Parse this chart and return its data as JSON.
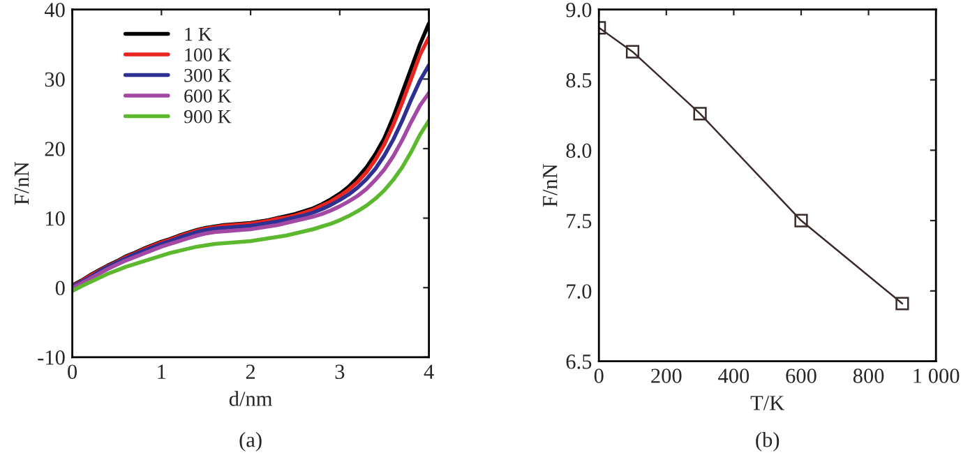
{
  "chart_data": [
    {
      "type": "line",
      "xlabel": "d/nm",
      "ylabel": "F/nN",
      "annotations": [
        "(a)"
      ],
      "xlim": [
        0,
        4
      ],
      "ylim": [
        -10,
        40
      ],
      "xticks": [
        0,
        1,
        2,
        3,
        4
      ],
      "yticks": [
        -10,
        0,
        10,
        20,
        30,
        40
      ],
      "legend": "top left",
      "grid": false,
      "x": [
        0,
        0.1,
        0.2,
        0.3,
        0.4,
        0.5,
        0.6,
        0.7,
        0.8,
        0.9,
        1.0,
        1.1,
        1.2,
        1.3,
        1.4,
        1.5,
        1.6,
        1.7,
        1.8,
        1.9,
        2.0,
        2.1,
        2.2,
        2.3,
        2.4,
        2.5,
        2.6,
        2.7,
        2.8,
        2.9,
        3.0,
        3.1,
        3.2,
        3.3,
        3.4,
        3.5,
        3.6,
        3.7,
        3.8,
        3.9,
        4.0
      ],
      "series": [
        {
          "name": "1 K",
          "color": "#000000",
          "values": [
            0.3,
            1.0,
            1.8,
            2.5,
            3.2,
            3.8,
            4.5,
            5.0,
            5.6,
            6.1,
            6.6,
            7.0,
            7.5,
            7.9,
            8.3,
            8.6,
            8.8,
            9.0,
            9.1,
            9.2,
            9.3,
            9.5,
            9.7,
            10.0,
            10.3,
            10.6,
            11.0,
            11.4,
            12.0,
            12.7,
            13.5,
            14.5,
            15.8,
            17.3,
            19.2,
            21.5,
            24.5,
            28.0,
            31.5,
            35.0,
            38.0
          ]
        },
        {
          "name": "100 K",
          "color": "#e8251f",
          "values": [
            0.2,
            0.9,
            1.7,
            2.4,
            3.1,
            3.7,
            4.4,
            4.9,
            5.5,
            6.0,
            6.5,
            6.9,
            7.4,
            7.8,
            8.2,
            8.5,
            8.7,
            8.9,
            9.0,
            9.1,
            9.2,
            9.4,
            9.6,
            9.9,
            10.1,
            10.4,
            10.8,
            11.2,
            11.8,
            12.4,
            13.2,
            14.1,
            15.2,
            16.6,
            18.4,
            20.6,
            23.4,
            26.6,
            30.0,
            33.5,
            36.0
          ]
        },
        {
          "name": "300 K",
          "color": "#2e3192",
          "values": [
            0.1,
            0.8,
            1.5,
            2.3,
            3.0,
            3.6,
            4.2,
            4.8,
            5.3,
            5.8,
            6.3,
            6.7,
            7.2,
            7.6,
            8.0,
            8.3,
            8.5,
            8.6,
            8.7,
            8.8,
            8.9,
            9.1,
            9.3,
            9.5,
            9.8,
            10.1,
            10.4,
            10.8,
            11.3,
            11.9,
            12.6,
            13.4,
            14.4,
            15.6,
            17.1,
            19.0,
            21.3,
            24.0,
            27.0,
            29.8,
            32.0
          ]
        },
        {
          "name": "600 K",
          "color": "#a349a4",
          "values": [
            0.0,
            0.6,
            1.3,
            2.0,
            2.7,
            3.3,
            3.9,
            4.4,
            4.9,
            5.4,
            5.9,
            6.3,
            6.7,
            7.1,
            7.5,
            7.8,
            8.0,
            8.1,
            8.2,
            8.3,
            8.4,
            8.6,
            8.8,
            9.0,
            9.3,
            9.6,
            9.9,
            10.2,
            10.6,
            11.1,
            11.7,
            12.4,
            13.2,
            14.2,
            15.5,
            17.0,
            18.9,
            21.2,
            23.8,
            26.2,
            28.0
          ]
        },
        {
          "name": "900 K",
          "color": "#5cb82e",
          "values": [
            -0.5,
            0.2,
            0.8,
            1.4,
            2.0,
            2.5,
            3.0,
            3.4,
            3.8,
            4.2,
            4.6,
            5.0,
            5.3,
            5.6,
            5.9,
            6.1,
            6.3,
            6.4,
            6.5,
            6.6,
            6.7,
            6.9,
            7.1,
            7.3,
            7.5,
            7.8,
            8.1,
            8.4,
            8.8,
            9.2,
            9.7,
            10.3,
            11.0,
            11.8,
            12.8,
            14.0,
            15.5,
            17.3,
            19.5,
            22.0,
            24.0
          ]
        }
      ]
    },
    {
      "type": "line",
      "xlabel": "T/K",
      "ylabel": "F/nN",
      "annotations": [
        "(b)"
      ],
      "xlim": [
        0,
        1000
      ],
      "ylim": [
        6.5,
        9.0
      ],
      "xticks": [
        0,
        200,
        400,
        600,
        800,
        {
          "value": 1000,
          "label": "1 000"
        }
      ],
      "yticks": [
        6.5,
        {
          "value": 7,
          "label": "7.0"
        },
        7.5,
        {
          "value": 8,
          "label": "8.0"
        },
        8.5,
        {
          "value": 9,
          "label": "9.0"
        }
      ],
      "marker": "square",
      "grid": false,
      "x": [
        1,
        100,
        300,
        600,
        900
      ],
      "series": [
        {
          "color": "#3a2a2a",
          "values": [
            8.87,
            8.7,
            8.26,
            7.5,
            6.91
          ]
        }
      ]
    }
  ]
}
